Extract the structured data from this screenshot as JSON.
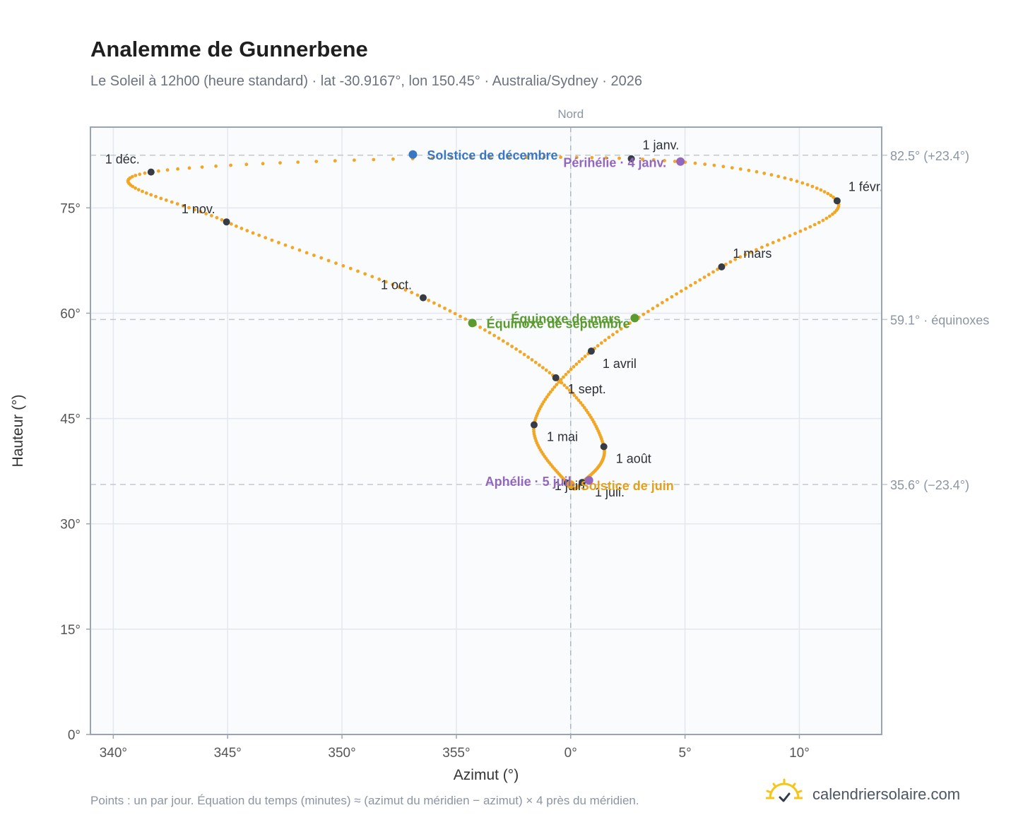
{
  "header": {
    "title": "Analemme de Gunnerbene",
    "subtitle": "Le Soleil à 12h00 (heure standard) · lat -30.9167°, lon 150.45° · Australia/Sydney · 2026"
  },
  "footer": {
    "note": "Points : un par jour. Équation du temps (minutes) ≈ (azimut du méridien − azimut) × 4 près du méridien.",
    "brand": "calendriersolaire.com",
    "brand_icon": "sun-check-icon"
  },
  "colors": {
    "curve": "#f2a623",
    "month_dot": "#363b45",
    "solstice_dec": "#3a77c2",
    "solstice_jun": "#e3a11c",
    "equinox": "#5a9a2e",
    "perihelion": "#9467bd",
    "plot_bg": "#f9fbfd",
    "frame": "#9aa4b2",
    "grid": "#e3e8ee",
    "ref_line": "#c2c8d0"
  },
  "chart_data": {
    "type": "scatter",
    "title": "Analemme de Gunnerbene",
    "xlabel": "Azimut (°)",
    "ylabel": "Hauteur (°)",
    "top_axis_label": "Nord",
    "xlim": [
      -21,
      13.6
    ],
    "ylim": [
      0,
      86.5
    ],
    "x_ticks": [
      {
        "value": -20,
        "label": "340°"
      },
      {
        "value": -15,
        "label": "345°"
      },
      {
        "value": -10,
        "label": "350°"
      },
      {
        "value": -5,
        "label": "355°"
      },
      {
        "value": 0,
        "label": "0°"
      },
      {
        "value": 5,
        "label": "5°"
      },
      {
        "value": 10,
        "label": "10°"
      }
    ],
    "y_ticks": [
      {
        "value": 0,
        "label": "0°"
      },
      {
        "value": 15,
        "label": "15°"
      },
      {
        "value": 30,
        "label": "30°"
      },
      {
        "value": 45,
        "label": "45°"
      },
      {
        "value": 60,
        "label": "60°"
      },
      {
        "value": 75,
        "label": "75°"
      }
    ],
    "reference_lines": [
      {
        "value": 82.5,
        "label": "82.5° (+23.4°)"
      },
      {
        "value": 59.1,
        "label": "59.1° · équinoxes"
      },
      {
        "value": 35.6,
        "label": "35.6° (−23.4°)"
      }
    ],
    "meridian_azimuth": 0,
    "grid": true,
    "series": [
      {
        "points": [
          [
            2.65,
            82.0
          ],
          [
            11.65,
            76.0
          ],
          [
            6.6,
            66.6
          ],
          [
            0.9,
            54.6
          ],
          [
            -1.6,
            44.1
          ],
          [
            -0.15,
            35.8
          ],
          [
            0.5,
            35.9
          ],
          [
            1.45,
            41.0
          ],
          [
            -0.65,
            50.8
          ],
          [
            -6.45,
            62.2
          ],
          [
            -15.05,
            73.0
          ],
          [
            -18.35,
            80.1
          ],
          [
            2.65,
            82.0
          ]
        ]
      }
    ],
    "month_markers": [
      {
        "label": "1 janv.",
        "az": 2.65,
        "alt": 82.0,
        "anchor": "start",
        "dx": 16,
        "dy": -13
      },
      {
        "label": "1 févr.",
        "az": 11.65,
        "alt": 76.0,
        "anchor": "start",
        "dx": 16,
        "dy": -14
      },
      {
        "label": "1 mars",
        "az": 6.6,
        "alt": 66.6,
        "anchor": "start",
        "dx": 16,
        "dy": -13
      },
      {
        "label": "1 avril",
        "az": 0.9,
        "alt": 54.6,
        "anchor": "start",
        "dx": 16,
        "dy": 24
      },
      {
        "label": "1 mai",
        "az": -1.6,
        "alt": 44.1,
        "anchor": "start",
        "dx": 18,
        "dy": 23
      },
      {
        "label": "1 juin",
        "az": -0.15,
        "alt": 35.8,
        "anchor": "start",
        "dx": -18,
        "dy": 10
      },
      {
        "label": "1 juil.",
        "az": 0.5,
        "alt": 35.9,
        "anchor": "start",
        "dx": 18,
        "dy": 20
      },
      {
        "label": "1 août",
        "az": 1.45,
        "alt": 41.0,
        "anchor": "start",
        "dx": 17,
        "dy": 23
      },
      {
        "label": "1 sept.",
        "az": -0.65,
        "alt": 50.8,
        "anchor": "start",
        "dx": 17,
        "dy": 22
      },
      {
        "label": "1 oct.",
        "az": -6.45,
        "alt": 62.2,
        "anchor": "end",
        "dx": -16,
        "dy": -12
      },
      {
        "label": "1 nov.",
        "az": -15.05,
        "alt": 73.0,
        "anchor": "end",
        "dx": -16,
        "dy": -12
      },
      {
        "label": "1 déc.",
        "az": -18.35,
        "alt": 80.1,
        "anchor": "end",
        "dx": -16,
        "dy": -12
      }
    ],
    "events": [
      {
        "label": "Solstice de décembre",
        "az": -6.9,
        "alt": 82.6,
        "color": "#3a77c2",
        "anchor": "start",
        "dx": 20,
        "dy": 7
      },
      {
        "label": "Périhélie · 4 janv.",
        "az": 4.8,
        "alt": 81.6,
        "color": "#9467bd",
        "anchor": "end",
        "dx": -20,
        "dy": 8
      },
      {
        "label": "Équinoxe de mars",
        "az": 2.8,
        "alt": 59.3,
        "color": "#5a9a2e",
        "anchor": "end",
        "dx": -20,
        "dy": 7
      },
      {
        "label": "Équinoxe de septembre",
        "az": -4.3,
        "alt": 58.6,
        "color": "#5a9a2e",
        "anchor": "start",
        "dx": 20,
        "dy": 7
      },
      {
        "label": "Solstice de juin",
        "az": 0.0,
        "alt": 35.6,
        "color": "#e3a11c",
        "anchor": "start",
        "dx": 14,
        "dy": 8
      },
      {
        "label": "Aphélie · 5 juil.",
        "az": 0.8,
        "alt": 36.2,
        "color": "#9467bd",
        "anchor": "end",
        "dx": -20,
        "dy": 8
      }
    ]
  }
}
